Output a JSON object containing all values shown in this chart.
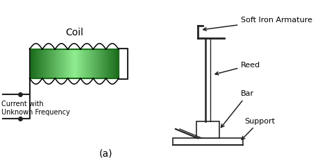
{
  "bg_color": "#ffffff",
  "coil_label": "Coil",
  "coil_color_dark": "#1a6b1a",
  "coil_color_light": "#90ee90",
  "circuit_label": "Current with\nUnknown Frequency",
  "armature_label": "Soft Iron Armature",
  "reed_label": "Reed",
  "bar_label": "Bar",
  "support_label": "Support",
  "caption": "(a)",
  "line_color": "#222222",
  "label_fontsize": 8,
  "caption_fontsize": 10
}
